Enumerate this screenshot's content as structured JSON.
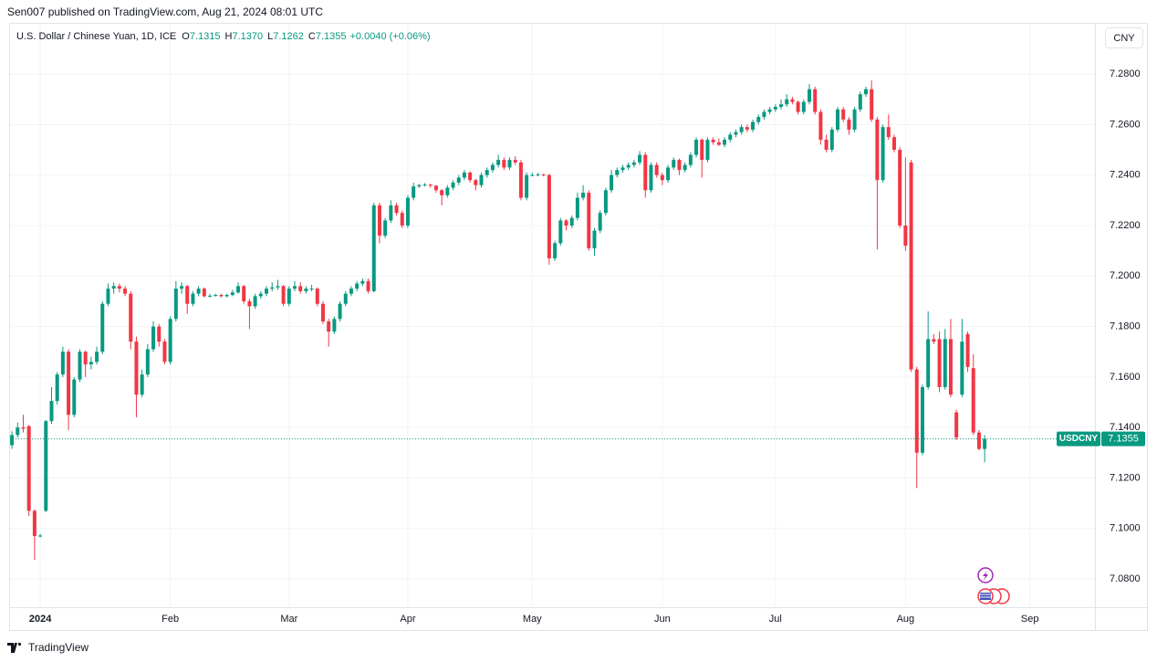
{
  "header": {
    "published": "Sen007 published on TradingView.com, Aug 21, 2024 08:01 UTC",
    "symbol": "U.S. Dollar / Chinese Yuan, 1D, ICE",
    "ohlc": [
      {
        "key": "O",
        "value": "7.1315"
      },
      {
        "key": "H",
        "value": "7.1370"
      },
      {
        "key": "L",
        "value": "7.1262"
      },
      {
        "key": "C",
        "value": "7.1355"
      }
    ],
    "change": "+0.0040 (+0.06%)",
    "currency": "CNY"
  },
  "footer": {
    "brand": "TradingView"
  },
  "chart_data": {
    "type": "candlestick",
    "ticker": "USDCNY",
    "up_color": "#089981",
    "down_color": "#f23645",
    "grid": true,
    "ylim": [
      7.0688,
      7.3003
    ],
    "yticks": [
      {
        "value": 7.08,
        "label": "7.0800"
      },
      {
        "value": 7.1,
        "label": "7.1000"
      },
      {
        "value": 7.12,
        "label": "7.1200"
      },
      {
        "value": 7.14,
        "label": "7.1400"
      },
      {
        "value": 7.16,
        "label": "7.1600"
      },
      {
        "value": 7.18,
        "label": "7.1800"
      },
      {
        "value": 7.2,
        "label": "7.2000"
      },
      {
        "value": 7.22,
        "label": "7.2200"
      },
      {
        "value": 7.24,
        "label": "7.2400"
      },
      {
        "value": 7.26,
        "label": "7.2600"
      },
      {
        "value": 7.28,
        "label": "7.2800"
      }
    ],
    "categories": [
      null,
      null,
      null,
      null,
      null,
      "2024",
      null,
      null,
      null,
      null,
      null,
      null,
      null,
      null,
      null,
      null,
      null,
      null,
      null,
      null,
      null,
      null,
      null,
      null,
      null,
      null,
      null,
      null,
      "Feb",
      null,
      null,
      null,
      null,
      null,
      null,
      null,
      null,
      null,
      null,
      null,
      null,
      null,
      null,
      null,
      null,
      null,
      null,
      null,
      null,
      "Mar",
      null,
      null,
      null,
      null,
      null,
      null,
      null,
      null,
      null,
      null,
      null,
      null,
      null,
      null,
      null,
      null,
      null,
      null,
      null,
      null,
      "Apr",
      null,
      null,
      null,
      null,
      null,
      null,
      null,
      null,
      null,
      null,
      null,
      null,
      null,
      null,
      null,
      null,
      null,
      null,
      null,
      null,
      null,
      "May",
      null,
      null,
      null,
      null,
      null,
      null,
      null,
      null,
      null,
      null,
      null,
      null,
      null,
      null,
      null,
      null,
      null,
      null,
      null,
      null,
      null,
      null,
      "Jun",
      null,
      null,
      null,
      null,
      null,
      null,
      null,
      null,
      null,
      null,
      null,
      null,
      null,
      null,
      null,
      null,
      null,
      null,
      null,
      "Jul",
      null,
      null,
      null,
      null,
      null,
      null,
      null,
      null,
      null,
      null,
      null,
      null,
      null,
      null,
      null,
      null,
      null,
      null,
      null,
      null,
      null,
      null,
      "Aug",
      null,
      null,
      null,
      null,
      null,
      null,
      null,
      null,
      null,
      null,
      null,
      null,
      null,
      null,
      null,
      null,
      null,
      null,
      null,
      null,
      null,
      "Sep",
      null,
      null,
      null,
      null,
      null,
      null,
      null,
      null,
      null,
      null,
      null
    ],
    "open": [
      7.133,
      7.137,
      7.14,
      7.1405,
      7.107,
      7.097,
      7.107,
      7.1425,
      7.1505,
      7.161,
      7.17,
      7.145,
      7.159,
      7.17,
      7.165,
      7.166,
      7.17,
      7.189,
      7.195,
      7.196,
      7.195,
      7.193,
      7.174,
      7.153,
      7.161,
      7.171,
      7.18,
      7.174,
      7.166,
      7.183,
      7.195,
      7.196,
      7.189,
      7.193,
      7.195,
      7.192,
      7.1922,
      7.1925,
      7.192,
      7.1925,
      7.1935,
      7.196,
      7.19,
      7.188,
      7.192,
      7.193,
      7.195,
      7.1955,
      7.196,
      7.189,
      7.195,
      7.196,
      7.194,
      7.195,
      7.195,
      7.189,
      7.182,
      7.178,
      7.183,
      7.189,
      7.193,
      7.195,
      7.197,
      7.198,
      7.194,
      7.228,
      7.216,
      7.222,
      7.228,
      7.225,
      7.22,
      7.231,
      7.2355,
      7.236,
      7.2362,
      7.2358,
      7.234,
      7.232,
      7.235,
      7.237,
      7.239,
      7.241,
      7.238,
      7.236,
      7.24,
      7.242,
      7.244,
      7.246,
      7.243,
      7.246,
      7.245,
      7.231,
      7.24,
      7.24,
      7.2402,
      7.24,
      7.207,
      7.213,
      7.222,
      7.22,
      7.223,
      7.231,
      7.233,
      7.211,
      7.218,
      7.225,
      7.234,
      7.24,
      7.242,
      7.243,
      7.244,
      7.245,
      7.248,
      7.234,
      7.244,
      7.24,
      7.238,
      7.243,
      7.246,
      7.242,
      7.244,
      7.248,
      7.254,
      7.246,
      7.254,
      7.253,
      7.252,
      7.254,
      7.256,
      7.257,
      7.259,
      7.258,
      7.261,
      7.263,
      7.265,
      7.266,
      7.267,
      7.268,
      7.27,
      7.269,
      7.265,
      7.269,
      7.274,
      7.265,
      7.254,
      7.25,
      7.258,
      7.266,
      7.262,
      7.258,
      7.266,
      7.272,
      7.274,
      7.262,
      7.238,
      7.259,
      7.255,
      7.25,
      7.22,
      7.245,
      7.163,
      7.13,
      7.156,
      7.175,
      7.175,
      7.156,
      7.175,
      7.146,
      7.153,
      7.177,
      7.1635,
      7.138,
      7.1315,
      null,
      null,
      null,
      null,
      null,
      null,
      null,
      null,
      null,
      null,
      null,
      null,
      null,
      null,
      null,
      null,
      null,
      null,
      null
    ],
    "high": [
      7.1385,
      7.142,
      7.145,
      7.141,
      7.1075,
      7.0978,
      7.143,
      7.156,
      7.162,
      7.172,
      7.171,
      7.16,
      7.171,
      7.1705,
      7.168,
      7.172,
      7.19,
      7.197,
      7.1975,
      7.197,
      7.196,
      7.194,
      7.176,
      7.163,
      7.173,
      7.182,
      7.181,
      7.175,
      7.184,
      7.198,
      7.1975,
      7.1965,
      7.194,
      7.196,
      7.1955,
      7.193,
      7.193,
      7.193,
      7.193,
      7.1945,
      7.1975,
      7.1965,
      7.191,
      7.193,
      7.194,
      7.196,
      7.1975,
      7.1985,
      7.1965,
      7.196,
      7.198,
      7.1975,
      7.196,
      7.1965,
      7.1955,
      7.19,
      7.183,
      7.184,
      7.19,
      7.194,
      7.196,
      7.198,
      7.199,
      7.199,
      7.229,
      7.229,
      7.223,
      7.23,
      7.229,
      7.226,
      7.232,
      7.237,
      7.2365,
      7.2368,
      7.2365,
      7.236,
      7.2345,
      7.236,
      7.238,
      7.24,
      7.242,
      7.2415,
      7.2385,
      7.241,
      7.243,
      7.245,
      7.248,
      7.247,
      7.247,
      7.2475,
      7.246,
      7.241,
      7.241,
      7.2408,
      7.2405,
      7.2405,
      7.214,
      7.223,
      7.2225,
      7.224,
      7.233,
      7.236,
      7.234,
      7.219,
      7.226,
      7.235,
      7.242,
      7.243,
      7.244,
      7.245,
      7.246,
      7.2495,
      7.249,
      7.245,
      7.245,
      7.241,
      7.244,
      7.247,
      7.2465,
      7.245,
      7.249,
      7.255,
      7.2545,
      7.255,
      7.255,
      7.2545,
      7.255,
      7.257,
      7.258,
      7.26,
      7.26,
      7.262,
      7.264,
      7.266,
      7.267,
      7.268,
      7.27,
      7.272,
      7.271,
      7.2695,
      7.27,
      7.276,
      7.275,
      7.266,
      7.256,
      7.259,
      7.267,
      7.267,
      7.263,
      7.267,
      7.273,
      7.275,
      7.2775,
      7.263,
      7.26,
      7.264,
      7.256,
      7.251,
      7.247,
      7.246,
      7.164,
      7.157,
      7.186,
      7.177,
      7.178,
      7.179,
      7.183,
      7.147,
      7.183,
      7.178,
      7.169,
      7.139,
      7.137,
      null,
      null,
      null,
      null,
      null,
      null,
      null,
      null,
      null,
      null,
      null,
      null,
      null,
      null,
      null,
      null,
      null,
      null,
      null
    ],
    "low": [
      7.1315,
      7.136,
      7.138,
      7.105,
      7.0876,
      7.0965,
      7.1065,
      7.1415,
      7.149,
      7.16,
      7.139,
      7.144,
      7.158,
      7.16,
      7.163,
      7.165,
      7.169,
      7.188,
      7.193,
      7.1935,
      7.192,
      7.171,
      7.144,
      7.152,
      7.16,
      7.17,
      7.172,
      7.165,
      7.165,
      7.182,
      7.193,
      7.185,
      7.188,
      7.192,
      7.1915,
      7.1915,
      7.1918,
      7.1915,
      7.1915,
      7.192,
      7.193,
      7.189,
      7.179,
      7.187,
      7.191,
      7.192,
      7.194,
      7.1945,
      7.188,
      7.188,
      7.194,
      7.193,
      7.193,
      7.194,
      7.188,
      7.181,
      7.172,
      7.177,
      7.182,
      7.188,
      7.192,
      7.194,
      7.196,
      7.193,
      7.1935,
      7.213,
      7.215,
      7.221,
      7.224,
      7.219,
      7.219,
      7.23,
      7.235,
      7.2355,
      7.235,
      7.233,
      7.228,
      7.231,
      7.234,
      7.236,
      7.238,
      7.237,
      7.234,
      7.235,
      7.239,
      7.241,
      7.243,
      7.242,
      7.242,
      7.244,
      7.23,
      7.23,
      7.2395,
      7.2395,
      7.2395,
      7.2045,
      7.206,
      7.212,
      7.218,
      7.219,
      7.222,
      7.23,
      7.21,
      7.208,
      7.217,
      7.224,
      7.233,
      7.239,
      7.241,
      7.242,
      7.243,
      7.244,
      7.231,
      7.233,
      7.239,
      7.236,
      7.237,
      7.242,
      7.24,
      7.241,
      7.243,
      7.247,
      7.239,
      7.245,
      7.252,
      7.2515,
      7.251,
      7.253,
      7.255,
      7.256,
      7.257,
      7.257,
      7.26,
      7.262,
      7.264,
      7.265,
      7.266,
      7.267,
      7.268,
      7.264,
      7.264,
      7.268,
      7.264,
      7.252,
      7.249,
      7.249,
      7.257,
      7.261,
      7.256,
      7.257,
      7.265,
      7.271,
      7.261,
      7.2105,
      7.237,
      7.254,
      7.249,
      7.219,
      7.21,
      7.162,
      7.116,
      7.129,
      7.155,
      7.173,
      7.154,
      7.155,
      7.152,
      7.135,
      7.152,
      7.162,
      7.137,
      7.131,
      7.1262,
      null,
      null,
      null,
      null,
      null,
      null,
      null,
      null,
      null,
      null,
      null,
      null,
      null,
      null,
      null,
      null,
      null,
      null,
      null
    ],
    "close": [
      7.137,
      7.14,
      7.1395,
      7.107,
      7.097,
      7.0972,
      7.1425,
      7.1505,
      7.161,
      7.17,
      7.145,
      7.159,
      7.17,
      7.165,
      7.166,
      7.17,
      7.189,
      7.195,
      7.196,
      7.195,
      7.193,
      7.174,
      7.153,
      7.161,
      7.171,
      7.18,
      7.174,
      7.166,
      7.183,
      7.195,
      7.196,
      7.189,
      7.193,
      7.195,
      7.192,
      7.1922,
      7.1925,
      7.192,
      7.1925,
      7.1935,
      7.196,
      7.19,
      7.188,
      7.192,
      7.193,
      7.195,
      7.1955,
      7.196,
      7.189,
      7.195,
      7.196,
      7.194,
      7.195,
      7.195,
      7.189,
      7.182,
      7.178,
      7.183,
      7.189,
      7.193,
      7.195,
      7.197,
      7.198,
      7.194,
      7.228,
      7.216,
      7.222,
      7.228,
      7.225,
      7.22,
      7.231,
      7.2355,
      7.236,
      7.2362,
      7.2358,
      7.234,
      7.232,
      7.235,
      7.237,
      7.239,
      7.241,
      7.238,
      7.236,
      7.24,
      7.242,
      7.244,
      7.246,
      7.243,
      7.246,
      7.245,
      7.231,
      7.24,
      7.24,
      7.2402,
      7.24,
      7.207,
      7.213,
      7.222,
      7.22,
      7.223,
      7.231,
      7.233,
      7.211,
      7.218,
      7.225,
      7.234,
      7.24,
      7.242,
      7.243,
      7.244,
      7.245,
      7.248,
      7.234,
      7.244,
      7.24,
      7.238,
      7.243,
      7.246,
      7.242,
      7.244,
      7.248,
      7.254,
      7.246,
      7.254,
      7.253,
      7.252,
      7.254,
      7.256,
      7.257,
      7.259,
      7.258,
      7.261,
      7.263,
      7.265,
      7.266,
      7.267,
      7.268,
      7.27,
      7.269,
      7.265,
      7.269,
      7.274,
      7.265,
      7.254,
      7.25,
      7.258,
      7.266,
      7.262,
      7.258,
      7.266,
      7.272,
      7.274,
      7.262,
      7.238,
      7.259,
      7.255,
      7.25,
      7.22,
      7.212,
      7.163,
      7.13,
      7.156,
      7.175,
      7.174,
      7.156,
      7.175,
      7.153,
      7.136,
      7.174,
      7.164,
      7.138,
      7.1315,
      7.1355,
      null,
      null,
      null,
      null,
      null,
      null,
      null,
      null,
      null,
      null,
      null,
      null,
      null,
      null,
      null,
      null,
      null,
      null,
      null
    ]
  }
}
